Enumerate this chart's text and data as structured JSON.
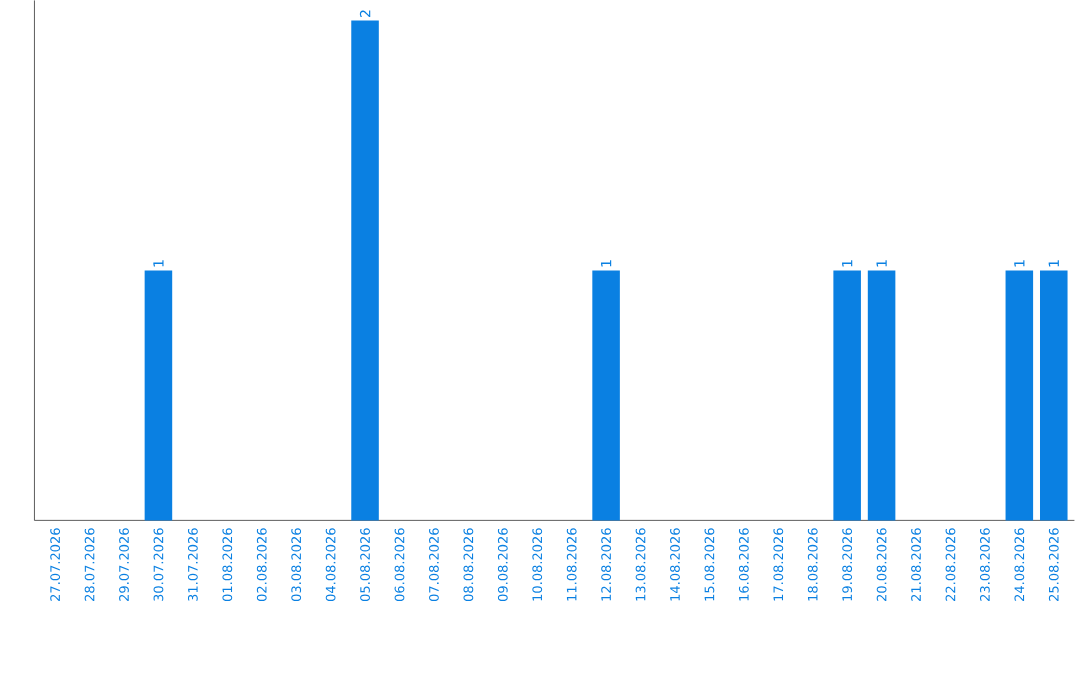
{
  "chart_data": {
    "type": "bar",
    "categories": [
      "27.07.2026",
      "28.07.2026",
      "29.07.2026",
      "30.07.2026",
      "31.07.2026",
      "01.08.2026",
      "02.08.2026",
      "03.08.2026",
      "04.08.2026",
      "05.08.2026",
      "06.08.2026",
      "07.08.2026",
      "08.08.2026",
      "09.08.2026",
      "10.08.2026",
      "11.08.2026",
      "12.08.2026",
      "13.08.2026",
      "14.08.2026",
      "15.08.2026",
      "16.08.2026",
      "17.08.2026",
      "18.08.2026",
      "19.08.2026",
      "20.08.2026",
      "21.08.2026",
      "22.08.2026",
      "23.08.2026",
      "24.08.2026",
      "25.08.2026"
    ],
    "values": [
      0,
      0,
      0,
      1,
      0,
      0,
      0,
      0,
      0,
      2,
      0,
      0,
      0,
      0,
      0,
      0,
      1,
      0,
      0,
      0,
      0,
      0,
      0,
      1,
      1,
      0,
      0,
      0,
      1,
      1
    ],
    "value_labels": [
      null,
      null,
      null,
      "1",
      null,
      null,
      null,
      null,
      null,
      "2",
      null,
      null,
      null,
      null,
      null,
      null,
      "1",
      null,
      null,
      null,
      null,
      null,
      null,
      "1",
      "1",
      null,
      null,
      null,
      "1",
      "1"
    ],
    "color": "#0a80e2"
  }
}
